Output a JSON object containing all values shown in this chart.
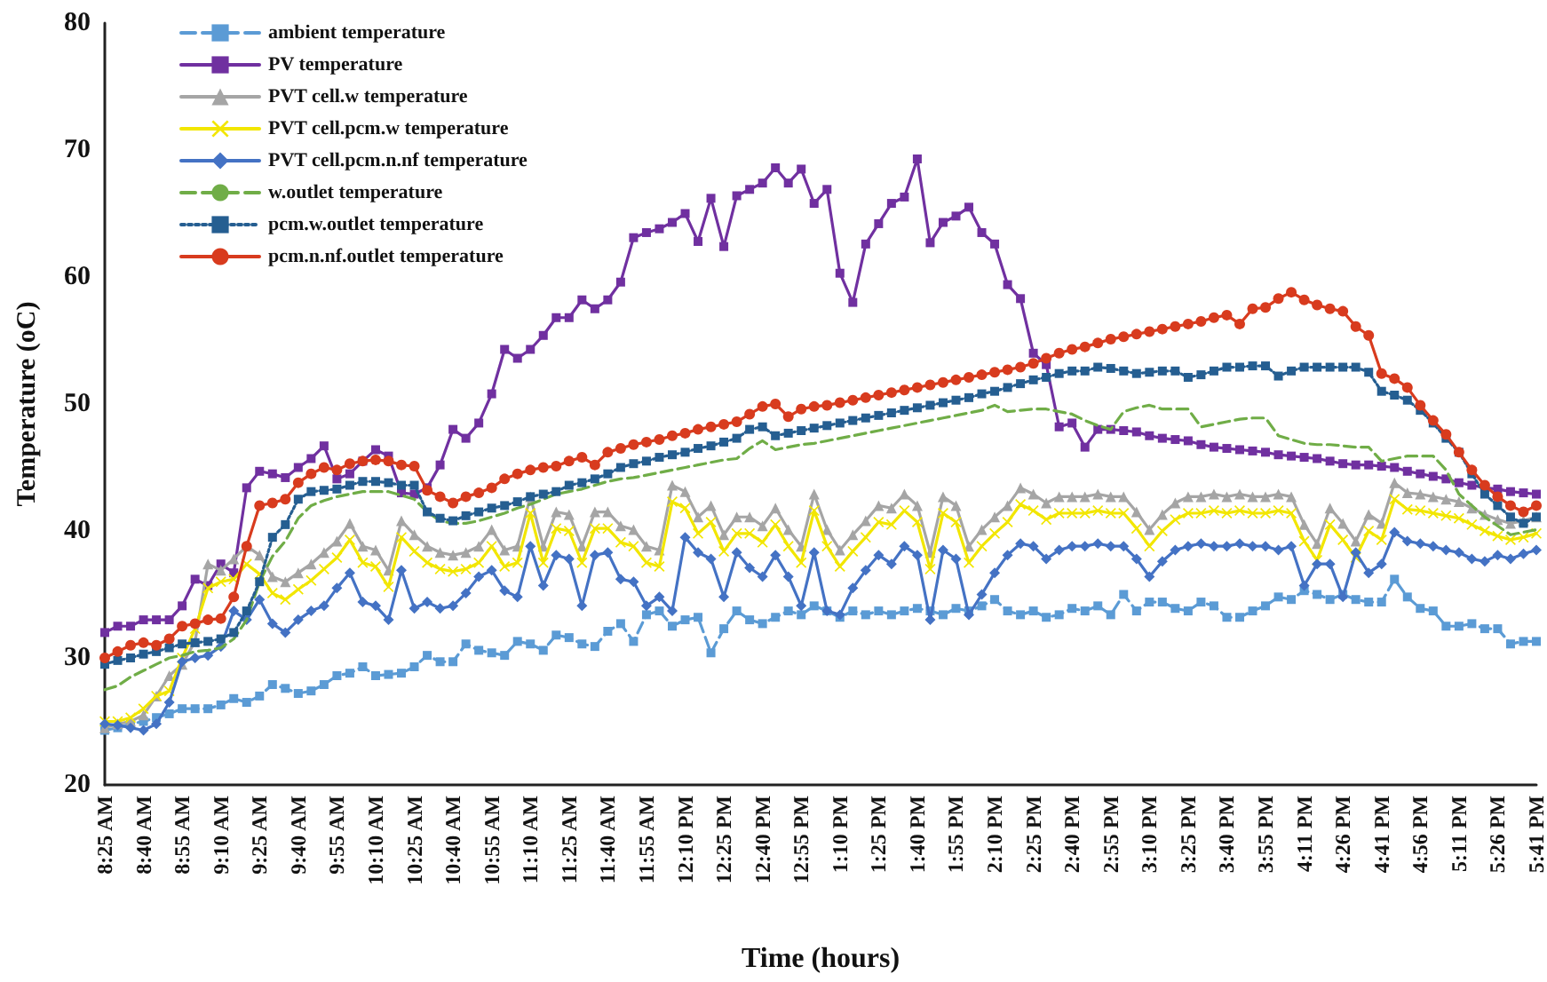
{
  "chart_data": {
    "type": "line",
    "xlabel": "Time (hours)",
    "ylabel": "Temperature (oC)",
    "categories": [
      "8:25 AM",
      null,
      null,
      "8:40 AM",
      null,
      null,
      "8:55 AM",
      null,
      null,
      "9:10 AM",
      null,
      null,
      "9:25 AM",
      null,
      null,
      "9:40 AM",
      null,
      null,
      "9:55 AM",
      null,
      null,
      "10:10 AM",
      null,
      null,
      "10:25 AM",
      null,
      null,
      "10:40 AM",
      null,
      null,
      "10:55 AM",
      null,
      null,
      "11:10 AM",
      null,
      null,
      "11:25 AM",
      null,
      null,
      "11:40 AM",
      null,
      null,
      "11:55 AM",
      null,
      null,
      "12:10 PM",
      null,
      null,
      "12:25 PM",
      null,
      null,
      "12:40 PM",
      null,
      null,
      "12:55 PM",
      null,
      null,
      "1:10 PM",
      null,
      null,
      "1:25 PM",
      null,
      null,
      "1:40 PM",
      null,
      null,
      "1:55 PM",
      null,
      null,
      "2:10 PM",
      null,
      null,
      "2:25 PM",
      null,
      null,
      "2:40 PM",
      null,
      null,
      "2:55 PM",
      null,
      null,
      "3:10 PM",
      null,
      null,
      "3:25 PM",
      null,
      null,
      "3:40 PM",
      null,
      null,
      "3:55 PM",
      null,
      null,
      "4:11 PM",
      null,
      null,
      "4:26 PM",
      null,
      null,
      "4:41 PM",
      null,
      null,
      "4:56 PM",
      null,
      null,
      "5:11 PM",
      null,
      null,
      "5:26 PM",
      null,
      null,
      "5:41 PM"
    ],
    "series": [
      {
        "name": "ambient temperature",
        "color": "#5b9bd5",
        "marker": "square",
        "line_style": "dashed",
        "values": [
          24.3,
          24.5,
          24.8,
          25,
          25.3,
          25.6,
          26,
          26,
          26,
          26.3,
          26.8,
          26.5,
          27,
          27.9,
          27.6,
          27.2,
          27.4,
          27.9,
          28.6,
          28.8,
          29.3,
          28.6,
          28.7,
          28.8,
          29.3,
          30.2,
          29.7,
          29.7,
          31.1,
          30.6,
          30.4,
          30.2,
          31.3,
          31.1,
          30.6,
          31.8,
          31.6,
          31.1,
          30.9,
          32.1,
          32.7,
          31.3,
          33.4,
          33.7,
          32.5,
          33,
          33.2,
          30.4,
          32.3,
          33.7,
          33,
          32.7,
          33.2,
          33.7,
          33.4,
          34.1,
          33.7,
          33.2,
          33.7,
          33.4,
          33.7,
          33.4,
          33.7,
          33.9,
          33.7,
          33.4,
          33.9,
          33.7,
          34.1,
          34.6,
          33.7,
          33.4,
          33.7,
          33.2,
          33.4,
          33.9,
          33.7,
          34.1,
          33.4,
          35,
          33.7,
          34.4,
          34.4,
          33.9,
          33.7,
          34.4,
          34.1,
          33.2,
          33.2,
          33.7,
          34.1,
          34.8,
          34.6,
          35.3,
          35,
          34.6,
          35,
          34.6,
          34.4,
          34.4,
          36.2,
          34.8,
          33.9,
          33.7,
          32.5,
          32.5,
          32.7,
          32.3,
          32.3,
          31.1,
          31.3,
          31.3
        ]
      },
      {
        "name": "PV temperature",
        "color": "#7030a0",
        "marker": "square",
        "line_style": "solid",
        "values": [
          32,
          32.5,
          32.5,
          33,
          33,
          33,
          34.1,
          36.2,
          35.7,
          37.4,
          36.7,
          43.4,
          44.7,
          44.5,
          44.2,
          45,
          45.7,
          46.7,
          44.1,
          44.5,
          45.5,
          46.4,
          45.9,
          43,
          42.9,
          43.4,
          45.2,
          48,
          47.3,
          48.5,
          50.8,
          54.3,
          53.6,
          54.3,
          55.4,
          56.8,
          56.8,
          58.2,
          57.5,
          58.2,
          59.6,
          63.1,
          63.5,
          63.8,
          64.3,
          65,
          62.8,
          66.2,
          62.4,
          66.4,
          66.9,
          67.4,
          68.6,
          67.4,
          68.5,
          65.8,
          66.9,
          60.3,
          58,
          62.6,
          64.2,
          65.8,
          66.3,
          69.3,
          62.7,
          64.3,
          64.8,
          65.5,
          63.5,
          62.6,
          59.4,
          58.3,
          54,
          53.1,
          48.2,
          48.5,
          46.6,
          48,
          48,
          47.9,
          47.8,
          47.5,
          47.3,
          47.2,
          47.1,
          46.8,
          46.6,
          46.5,
          46.4,
          46.3,
          46.2,
          46,
          45.9,
          45.8,
          45.7,
          45.5,
          45.3,
          45.2,
          45.2,
          45.1,
          45,
          44.7,
          44.5,
          44.3,
          44.1,
          43.8,
          43.6,
          43.4,
          43.3,
          43.1,
          43,
          42.9
        ]
      },
      {
        "name": "PVT cell.w temperature",
        "color": "#a5a5a5",
        "marker": "triangle",
        "line_style": "solid",
        "values": [
          24.5,
          24.8,
          25,
          25.5,
          27,
          28.6,
          29.5,
          31.3,
          37.4,
          36.9,
          37.8,
          38.8,
          38.1,
          36.4,
          36,
          36.7,
          37.4,
          38.3,
          39.2,
          40.6,
          38.8,
          38.5,
          36.9,
          40.8,
          39.7,
          38.8,
          38.3,
          38.1,
          38.3,
          38.8,
          40.1,
          38.5,
          38.8,
          42.7,
          38.8,
          41.5,
          41.3,
          38.8,
          41.5,
          41.5,
          40.4,
          40.1,
          38.8,
          38.5,
          43.6,
          43.1,
          41.1,
          42,
          39.7,
          41.1,
          41.1,
          40.4,
          41.8,
          40.1,
          38.8,
          42.9,
          40.1,
          38.5,
          39.7,
          40.8,
          42,
          41.8,
          42.9,
          42,
          38.3,
          42.7,
          42,
          38.8,
          40.1,
          41.1,
          42,
          43.4,
          42.9,
          42.2,
          42.7,
          42.7,
          42.7,
          42.9,
          42.7,
          42.7,
          41.5,
          40.1,
          41.3,
          42.2,
          42.7,
          42.7,
          42.9,
          42.7,
          42.9,
          42.7,
          42.7,
          42.9,
          42.7,
          40.5,
          39,
          41.8,
          40.6,
          39.2,
          41.3,
          40.6,
          43.8,
          43,
          42.9,
          42.7,
          42.5,
          42.3,
          41.8,
          41.3,
          40.9,
          40.6,
          40.8,
          41.1
        ]
      },
      {
        "name": "PVT cell.pcm.w temperature",
        "color": "#f2e600",
        "marker": "cross",
        "line_style": "solid",
        "values": [
          25,
          25,
          25.3,
          26,
          27,
          27.4,
          30,
          32.3,
          35.5,
          36,
          36.2,
          37.4,
          36.6,
          35.1,
          34.6,
          35.4,
          36.1,
          37,
          37.9,
          39.3,
          37.5,
          37.2,
          35.6,
          39.5,
          38.4,
          37.5,
          37,
          36.8,
          37,
          37.5,
          38.8,
          37.2,
          37.5,
          41.4,
          37.5,
          40.2,
          40,
          37.5,
          40.2,
          40.2,
          39.1,
          38.8,
          37.5,
          37.2,
          42.3,
          41.8,
          39.8,
          40.7,
          38.4,
          39.8,
          39.8,
          39.1,
          40.5,
          38.8,
          37.5,
          41.6,
          38.8,
          37.2,
          38.4,
          39.5,
          40.7,
          40.5,
          41.6,
          40.7,
          37,
          41.4,
          40.7,
          37.5,
          38.8,
          39.8,
          40.7,
          42.1,
          41.6,
          40.9,
          41.4,
          41.4,
          41.4,
          41.6,
          41.4,
          41.4,
          40.2,
          38.8,
          40,
          40.9,
          41.4,
          41.4,
          41.6,
          41.4,
          41.6,
          41.4,
          41.4,
          41.6,
          41.4,
          39.2,
          37.7,
          40.5,
          39.3,
          37.9,
          40,
          39.3,
          42.5,
          41.7,
          41.6,
          41.4,
          41.2,
          41,
          40.5,
          40,
          39.6,
          39.3,
          39.5,
          39.8
        ]
      },
      {
        "name": "PVT cell.pcm.n.nf temperature",
        "color": "#4472c4",
        "marker": "diamond",
        "line_style": "solid",
        "values": [
          24.8,
          24.7,
          24.5,
          24.3,
          24.8,
          26.5,
          29.7,
          30,
          30.2,
          30.9,
          33.7,
          33,
          34.6,
          32.7,
          32,
          33,
          33.7,
          34.1,
          35.5,
          36.7,
          34.4,
          34.1,
          33,
          36.9,
          33.9,
          34.4,
          33.9,
          34.1,
          35.1,
          36.4,
          36.9,
          35.3,
          34.8,
          38.8,
          35.7,
          38.1,
          37.8,
          34.1,
          38.1,
          38.3,
          36.2,
          36,
          34.1,
          34.8,
          33.7,
          39.5,
          38.3,
          37.8,
          34.8,
          38.3,
          37.1,
          36.4,
          38.1,
          36.4,
          34.1,
          38.3,
          33.7,
          33.4,
          35.5,
          36.9,
          38.1,
          37.4,
          38.8,
          38.1,
          33,
          38.5,
          37.8,
          33.4,
          35,
          36.7,
          38.1,
          39,
          38.8,
          37.8,
          38.5,
          38.8,
          38.8,
          39,
          38.8,
          38.8,
          37.8,
          36.4,
          37.6,
          38.5,
          38.8,
          39,
          38.8,
          38.8,
          39,
          38.8,
          38.8,
          38.5,
          38.8,
          35.7,
          37.4,
          37.4,
          34.8,
          38.3,
          36.7,
          37.4,
          39.9,
          39.2,
          39,
          38.8,
          38.5,
          38.3,
          37.8,
          37.6,
          38.1,
          37.8,
          38.2,
          38.5
        ]
      },
      {
        "name": "w.outlet temperature",
        "color": "#70ad47",
        "marker": "none",
        "line_style": "dashed",
        "values": [
          27.5,
          27.8,
          28.5,
          29,
          29.5,
          30,
          30.2,
          30.5,
          30.6,
          30.8,
          31.5,
          33,
          36,
          38,
          39.2,
          41,
          42,
          42.4,
          42.7,
          42.9,
          43.1,
          43.1,
          43.1,
          42.8,
          42.5,
          41.5,
          40.8,
          40.6,
          40.6,
          40.8,
          41.1,
          41.4,
          41.8,
          42.1,
          42.5,
          42.9,
          43.1,
          43.3,
          43.6,
          43.9,
          44.1,
          44.2,
          44.4,
          44.6,
          44.8,
          45,
          45.2,
          45.4,
          45.6,
          45.7,
          46.5,
          47.1,
          46.4,
          46.6,
          46.8,
          46.9,
          47.1,
          47.3,
          47.5,
          47.7,
          47.9,
          48.1,
          48.3,
          48.5,
          48.7,
          48.9,
          49.1,
          49.3,
          49.5,
          49.9,
          49.4,
          49.5,
          49.6,
          49.6,
          49.4,
          49.2,
          48.7,
          48.3,
          48,
          49.4,
          49.7,
          49.9,
          49.6,
          49.6,
          49.6,
          48.2,
          48.4,
          48.6,
          48.8,
          48.9,
          48.9,
          47.5,
          47.2,
          46.9,
          46.8,
          46.8,
          46.7,
          46.6,
          46.6,
          45.5,
          45.7,
          45.9,
          45.9,
          45.9,
          44.8,
          42.9,
          42,
          41.1,
          40.4,
          39.7,
          39.9,
          40.1
        ]
      },
      {
        "name": "pcm.w.outlet temperature",
        "color": "#255e91",
        "marker": "square",
        "line_style": "dotted",
        "values": [
          29.5,
          29.8,
          30,
          30.3,
          30.5,
          30.8,
          31.1,
          31.2,
          31.3,
          31.5,
          32,
          33.7,
          36,
          39.5,
          40.5,
          42.5,
          43.1,
          43.2,
          43.3,
          43.6,
          43.9,
          43.9,
          43.8,
          43.6,
          43.6,
          41.5,
          41,
          40.8,
          41.2,
          41.5,
          41.8,
          42,
          42.3,
          42.7,
          42.9,
          43.1,
          43.6,
          43.8,
          44.1,
          44.5,
          45,
          45.3,
          45.5,
          45.8,
          46,
          46.2,
          46.5,
          46.7,
          47,
          47.3,
          48,
          48.2,
          47.5,
          47.7,
          47.9,
          48.1,
          48.3,
          48.5,
          48.7,
          48.9,
          49.1,
          49.3,
          49.5,
          49.7,
          49.9,
          50.1,
          50.3,
          50.5,
          50.8,
          51,
          51.3,
          51.6,
          51.9,
          52.1,
          52.4,
          52.6,
          52.6,
          52.9,
          52.8,
          52.6,
          52.4,
          52.5,
          52.6,
          52.6,
          52.1,
          52.3,
          52.6,
          52.9,
          52.9,
          53,
          53,
          52.2,
          52.6,
          52.9,
          52.9,
          52.9,
          52.9,
          52.9,
          52.5,
          51,
          50.7,
          50.3,
          49.5,
          48.5,
          47.3,
          46.2,
          44.5,
          42.9,
          42,
          41.1,
          40.6,
          41.1
        ]
      },
      {
        "name": "pcm.n.nf.outlet temperature",
        "color": "#d83b1e",
        "marker": "circle",
        "line_style": "solid",
        "values": [
          30,
          30.5,
          31,
          31.2,
          31,
          31.5,
          32.5,
          32.7,
          33,
          33.1,
          34.8,
          38.8,
          42,
          42.2,
          42.5,
          43.8,
          44.5,
          45,
          44.8,
          45.3,
          45.5,
          45.6,
          45.5,
          45.2,
          45.1,
          43.2,
          42.7,
          42.2,
          42.7,
          43,
          43.4,
          44.1,
          44.5,
          44.8,
          45,
          45.1,
          45.5,
          45.8,
          45.2,
          46.2,
          46.5,
          46.8,
          47,
          47.2,
          47.5,
          47.7,
          48,
          48.2,
          48.4,
          48.6,
          49.2,
          49.8,
          50,
          49,
          49.6,
          49.8,
          49.9,
          50.1,
          50.3,
          50.5,
          50.7,
          50.9,
          51.1,
          51.3,
          51.5,
          51.7,
          51.9,
          52.1,
          52.3,
          52.5,
          52.7,
          52.9,
          53.2,
          53.6,
          54,
          54.3,
          54.5,
          54.8,
          55.1,
          55.3,
          55.5,
          55.7,
          55.9,
          56.1,
          56.3,
          56.5,
          56.8,
          57,
          56.3,
          57.5,
          57.6,
          58.3,
          58.8,
          58.2,
          57.8,
          57.5,
          57.3,
          56.1,
          55.4,
          52.4,
          52,
          51.3,
          49.9,
          48.7,
          47.6,
          46.2,
          44.8,
          43.6,
          42.7,
          42,
          41.5,
          42
        ]
      }
    ],
    "ylim": [
      20,
      80
    ],
    "yticks": [
      20,
      30,
      40,
      50,
      60,
      70,
      80
    ],
    "legend": "top left"
  }
}
